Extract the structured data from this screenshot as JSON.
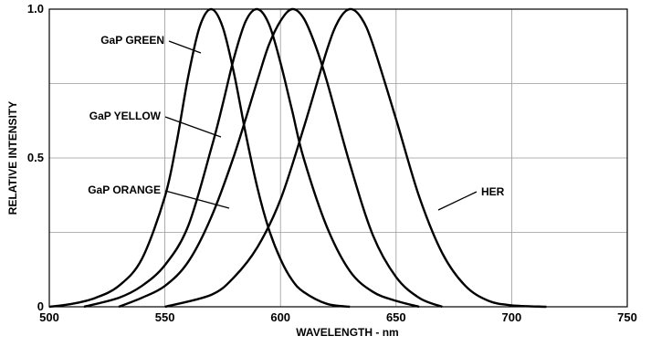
{
  "chart_data": {
    "type": "line",
    "xlabel": "WAVELENGTH - nm",
    "ylabel": "RELATIVE INTENSITY",
    "xlim": [
      500,
      750
    ],
    "ylim": [
      0,
      1.0
    ],
    "x_ticks": [
      "500",
      "550",
      "600",
      "650",
      "700",
      "750"
    ],
    "y_ticks": [
      "0",
      "0.5",
      "1.0"
    ],
    "grid": true,
    "series": [
      {
        "name": "GaP GREEN",
        "x": [
          500,
          510,
          520,
          530,
          540,
          550,
          555,
          560,
          565,
          570,
          575,
          580,
          585,
          590,
          595,
          600,
          605,
          610,
          620,
          630
        ],
        "y": [
          0.0,
          0.01,
          0.03,
          0.07,
          0.16,
          0.37,
          0.55,
          0.77,
          0.94,
          1.0,
          0.94,
          0.78,
          0.58,
          0.4,
          0.26,
          0.16,
          0.09,
          0.05,
          0.01,
          0.0
        ]
      },
      {
        "name": "GaP YELLOW",
        "x": [
          515,
          530,
          540,
          550,
          560,
          570,
          575,
          580,
          585,
          590,
          595,
          600,
          605,
          610,
          620,
          630,
          640,
          650,
          660
        ],
        "y": [
          0.0,
          0.03,
          0.07,
          0.14,
          0.27,
          0.53,
          0.68,
          0.84,
          0.96,
          1.0,
          0.95,
          0.82,
          0.66,
          0.5,
          0.27,
          0.12,
          0.05,
          0.02,
          0.0
        ]
      },
      {
        "name": "GaP ORANGE",
        "x": [
          530,
          540,
          550,
          560,
          570,
          580,
          590,
          595,
          600,
          605,
          610,
          615,
          620,
          630,
          640,
          650,
          660,
          670
        ],
        "y": [
          0.0,
          0.03,
          0.07,
          0.15,
          0.3,
          0.51,
          0.76,
          0.88,
          0.96,
          1.0,
          0.97,
          0.88,
          0.76,
          0.48,
          0.24,
          0.1,
          0.03,
          0.0
        ]
      },
      {
        "name": "HER",
        "x": [
          550,
          570,
          580,
          590,
          600,
          610,
          620,
          625,
          630,
          635,
          640,
          650,
          660,
          670,
          680,
          690,
          700,
          715
        ],
        "y": [
          0.0,
          0.04,
          0.1,
          0.2,
          0.36,
          0.6,
          0.86,
          0.96,
          1.0,
          0.97,
          0.88,
          0.63,
          0.37,
          0.18,
          0.07,
          0.02,
          0.005,
          0.0
        ]
      }
    ],
    "annotations": [
      "GaP GREEN",
      "GaP YELLOW",
      "GaP ORANGE",
      "HER"
    ]
  }
}
